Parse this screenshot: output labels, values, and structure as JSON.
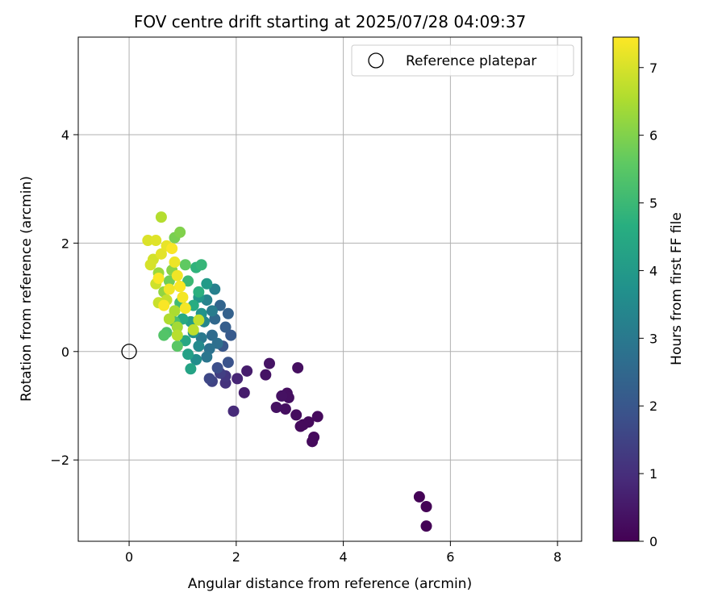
{
  "chart_data": {
    "type": "scatter",
    "title": "FOV centre drift starting at 2025/07/28 04:09:37",
    "xlabel": "Angular distance from reference (arcmin)",
    "ylabel": "Rotation from reference (arcmin)",
    "xlim": [
      -0.95,
      8.45
    ],
    "ylim": [
      -3.5,
      5.8
    ],
    "xticks": [
      0,
      2,
      4,
      6,
      8
    ],
    "yticks": [
      -2,
      0,
      2,
      4
    ],
    "grid": true,
    "legend": {
      "placement": "top-right",
      "entries": [
        {
          "label": "Reference platepar",
          "marker": "open-circle"
        }
      ]
    },
    "reference_point": {
      "x": 0,
      "y": 0
    },
    "colorbar": {
      "label": "Hours from first FF file",
      "colormap": "viridis",
      "range": [
        0,
        7.45
      ],
      "ticks": [
        0,
        1,
        2,
        3,
        4,
        5,
        6,
        7
      ]
    },
    "points": [
      [
        5.42,
        -2.68,
        0.05
      ],
      [
        5.55,
        -2.86,
        0.05
      ],
      [
        5.55,
        -3.22,
        0.05
      ],
      [
        3.45,
        -1.58,
        0.2
      ],
      [
        3.42,
        -1.66,
        0.2
      ],
      [
        3.52,
        -1.2,
        0.2
      ],
      [
        3.35,
        -1.3,
        0.2
      ],
      [
        3.25,
        -1.35,
        0.2
      ],
      [
        3.2,
        -1.38,
        0.2
      ],
      [
        3.12,
        -1.17,
        0.25
      ],
      [
        3.15,
        -0.3,
        0.3
      ],
      [
        2.95,
        -0.77,
        0.3
      ],
      [
        2.98,
        -0.85,
        0.3
      ],
      [
        2.92,
        -1.06,
        0.3
      ],
      [
        2.85,
        -0.82,
        0.35
      ],
      [
        2.75,
        -1.03,
        0.35
      ],
      [
        2.62,
        -0.22,
        0.4
      ],
      [
        2.55,
        -0.43,
        0.4
      ],
      [
        2.2,
        -0.36,
        0.6
      ],
      [
        2.15,
        -0.76,
        0.6
      ],
      [
        2.02,
        -0.5,
        0.8
      ],
      [
        1.95,
        -1.1,
        0.9
      ],
      [
        1.8,
        -0.58,
        1.1
      ],
      [
        1.8,
        -0.45,
        1.2
      ],
      [
        1.7,
        -0.4,
        1.4
      ],
      [
        1.55,
        -0.55,
        1.5
      ],
      [
        1.5,
        -0.5,
        1.6
      ],
      [
        1.65,
        -0.3,
        1.8
      ],
      [
        1.85,
        -0.2,
        1.9
      ],
      [
        1.75,
        0.1,
        2.0
      ],
      [
        1.9,
        0.3,
        2.1
      ],
      [
        1.8,
        0.45,
        2.2
      ],
      [
        1.85,
        0.7,
        2.3
      ],
      [
        1.7,
        0.85,
        2.4
      ],
      [
        1.6,
        0.6,
        2.5
      ],
      [
        1.55,
        0.3,
        2.6
      ],
      [
        1.65,
        0.15,
        2.7
      ],
      [
        1.5,
        0.05,
        2.8
      ],
      [
        1.45,
        -0.1,
        2.9
      ],
      [
        1.35,
        0.25,
        3.0
      ],
      [
        1.55,
        0.75,
        3.1
      ],
      [
        1.6,
        1.15,
        3.2
      ],
      [
        1.45,
        0.95,
        3.3
      ],
      [
        1.4,
        0.55,
        3.4
      ],
      [
        1.3,
        0.1,
        3.5
      ],
      [
        1.25,
        -0.15,
        3.6
      ],
      [
        1.2,
        0.35,
        3.7
      ],
      [
        1.35,
        0.7,
        3.8
      ],
      [
        1.3,
        1.0,
        3.9
      ],
      [
        1.45,
        1.25,
        4.0
      ],
      [
        1.15,
        0.55,
        4.1
      ],
      [
        1.1,
        -0.05,
        4.2
      ],
      [
        1.15,
        -0.32,
        4.3
      ],
      [
        1.05,
        0.2,
        4.4
      ],
      [
        1.0,
        0.6,
        4.5
      ],
      [
        1.2,
        0.85,
        4.6
      ],
      [
        1.3,
        1.1,
        4.7
      ],
      [
        1.25,
        1.55,
        4.8
      ],
      [
        1.35,
        1.6,
        4.9
      ],
      [
        1.1,
        1.3,
        5.0
      ],
      [
        0.95,
        0.9,
        5.1
      ],
      [
        0.85,
        0.55,
        5.2
      ],
      [
        0.7,
        0.35,
        5.3
      ],
      [
        0.65,
        0.3,
        5.4
      ],
      [
        0.9,
        0.1,
        5.5
      ],
      [
        1.05,
        1.6,
        5.6
      ],
      [
        0.95,
        1.2,
        5.7
      ],
      [
        0.75,
        1.3,
        5.8
      ],
      [
        0.85,
        2.1,
        5.9
      ],
      [
        0.95,
        2.2,
        6.0
      ],
      [
        0.8,
        1.5,
        6.1
      ],
      [
        0.65,
        1.1,
        6.2
      ],
      [
        0.55,
        1.45,
        6.3
      ],
      [
        0.9,
        0.45,
        6.4
      ],
      [
        0.85,
        0.75,
        6.5
      ],
      [
        0.75,
        0.6,
        6.55
      ],
      [
        0.6,
        2.48,
        6.6
      ],
      [
        0.9,
        0.3,
        6.65
      ],
      [
        1.2,
        0.4,
        6.7
      ],
      [
        1.3,
        0.58,
        6.75
      ],
      [
        0.7,
        0.95,
        6.8
      ],
      [
        0.55,
        0.9,
        6.85
      ],
      [
        0.5,
        1.25,
        6.9
      ],
      [
        0.45,
        1.7,
        6.95
      ],
      [
        0.4,
        1.6,
        7.0
      ],
      [
        0.35,
        2.05,
        7.05
      ],
      [
        0.5,
        2.05,
        7.1
      ],
      [
        0.6,
        1.8,
        7.15
      ],
      [
        0.7,
        1.95,
        7.2
      ],
      [
        0.85,
        1.65,
        7.25
      ],
      [
        0.9,
        1.4,
        7.3
      ],
      [
        0.75,
        1.15,
        7.3
      ],
      [
        1.0,
        1.0,
        7.35
      ],
      [
        1.05,
        0.8,
        7.35
      ],
      [
        0.65,
        0.85,
        7.4
      ],
      [
        0.8,
        1.9,
        7.4
      ],
      [
        0.55,
        1.35,
        7.42
      ],
      [
        0.95,
        1.2,
        7.42
      ]
    ]
  }
}
